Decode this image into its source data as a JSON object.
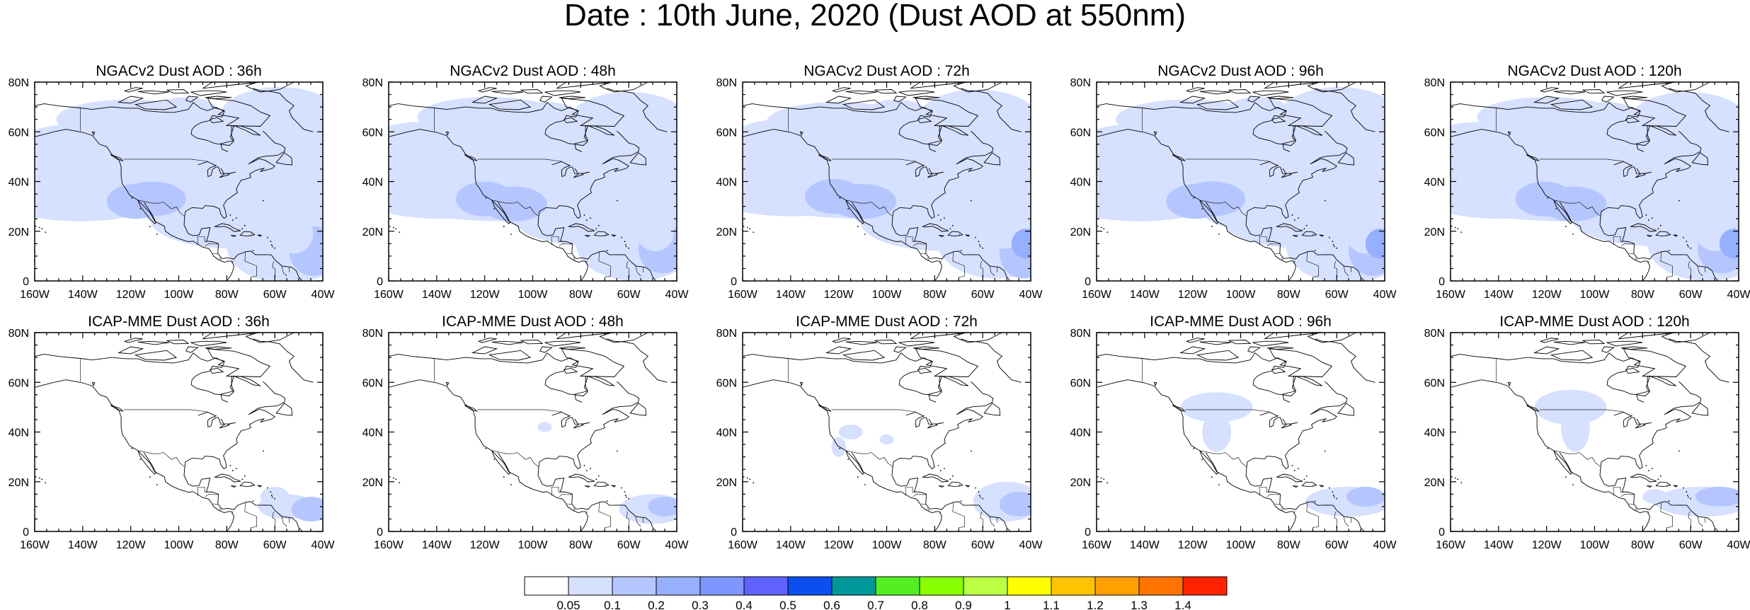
{
  "title": "Date : 10th June, 2020 (Dust AOD at 550nm)",
  "rows": [
    {
      "model": "NGACv2",
      "panels": [
        {
          "title": "NGACv2 Dust AOD : 36h"
        },
        {
          "title": "NGACv2 Dust AOD : 48h"
        },
        {
          "title": "NGACv2 Dust AOD : 72h"
        },
        {
          "title": "NGACv2 Dust AOD : 96h"
        },
        {
          "title": "NGACv2 Dust AOD : 120h"
        }
      ]
    },
    {
      "model": "ICAP-MME",
      "panels": [
        {
          "title": "ICAP-MME Dust AOD : 36h"
        },
        {
          "title": "ICAP-MME Dust AOD : 48h"
        },
        {
          "title": "ICAP-MME Dust AOD : 72h"
        },
        {
          "title": "ICAP-MME Dust AOD : 96h"
        },
        {
          "title": "ICAP-MME Dust AOD : 120h"
        }
      ]
    }
  ],
  "axes": {
    "lon_range": [
      -160,
      -40
    ],
    "lat_range": [
      0,
      80
    ],
    "lon_labels": [
      "160W",
      "140W",
      "120W",
      "100W",
      "80W",
      "60W",
      "40W"
    ],
    "lat_labels": [
      "0",
      "20N",
      "40N",
      "60N",
      "80N"
    ]
  },
  "colorbar": {
    "levels": [
      "0.05",
      "0.1",
      "0.2",
      "0.3",
      "0.4",
      "0.5",
      "0.6",
      "0.7",
      "0.8",
      "0.9",
      "1",
      "1.1",
      "1.2",
      "1.3",
      "1.4"
    ],
    "colors": [
      "#ffffff",
      "#d6e0ff",
      "#b5c6ff",
      "#97afff",
      "#7f95ff",
      "#5f62ff",
      "#0c4ff0",
      "#00979a",
      "#55ee22",
      "#88ff00",
      "#bbff44",
      "#ffff00",
      "#ffc400",
      "#ffa000",
      "#ff7300",
      "#ff2300"
    ]
  }
}
